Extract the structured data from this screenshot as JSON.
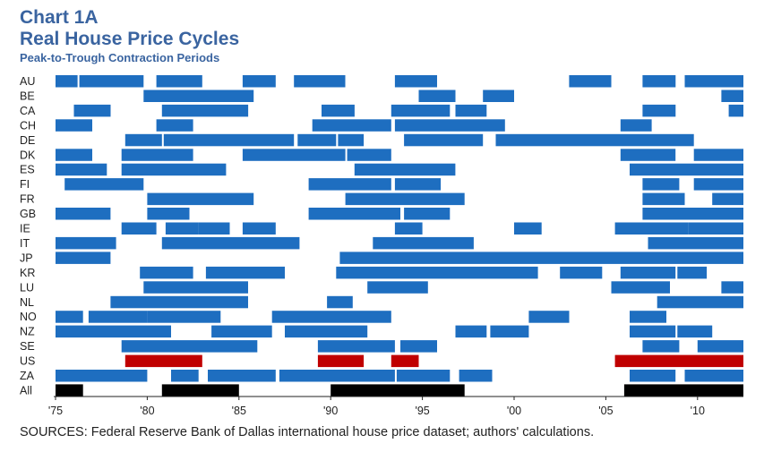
{
  "chart_data": {
    "type": "bar",
    "subtype": "timeline",
    "title": "Chart 1A",
    "subtitle": "Real House Price Cycles",
    "caption": "Peak-to-Trough Contraction Periods",
    "source": "SOURCES: Federal Reserve Bank of Dallas international house price dataset; authors' calculations.",
    "xlabel": "",
    "ylabel": "",
    "xlim": [
      1975.0,
      2012.5
    ],
    "x_ticks": [
      {
        "value": 1975,
        "label": "'75"
      },
      {
        "value": 1980,
        "label": "'80"
      },
      {
        "value": 1985,
        "label": "'85"
      },
      {
        "value": 1990,
        "label": "'90"
      },
      {
        "value": 1995,
        "label": "'95"
      },
      {
        "value": 2000,
        "label": "'00"
      },
      {
        "value": 2005,
        "label": "'05"
      },
      {
        "value": 2010,
        "label": "'10"
      }
    ],
    "grid": false,
    "colors": {
      "contraction": "#1e6ec0",
      "us": "#c00000",
      "all": "#000000"
    },
    "series": [
      {
        "name": "AU",
        "periods": [
          [
            1975.0,
            1976.2
          ],
          [
            1976.3,
            1979.8
          ],
          [
            1980.5,
            1983.0
          ],
          [
            1985.2,
            1987.0
          ],
          [
            1988.0,
            1990.8
          ],
          [
            1993.5,
            1995.8
          ],
          [
            2003.0,
            2005.3
          ],
          [
            2007.0,
            2008.8
          ],
          [
            2009.3,
            2012.5
          ]
        ]
      },
      {
        "name": "BE",
        "periods": [
          [
            1979.8,
            1985.8
          ],
          [
            1994.8,
            1996.8
          ],
          [
            1998.3,
            2000.0
          ],
          [
            2011.3,
            2012.5
          ]
        ]
      },
      {
        "name": "CA",
        "periods": [
          [
            1976.0,
            1978.0
          ],
          [
            1980.8,
            1985.5
          ],
          [
            1989.5,
            1991.3
          ],
          [
            1993.3,
            1996.5
          ],
          [
            1996.8,
            1998.5
          ],
          [
            2007.0,
            2008.8
          ],
          [
            2011.7,
            2012.5
          ]
        ]
      },
      {
        "name": "CH",
        "periods": [
          [
            1975.0,
            1977.0
          ],
          [
            1980.5,
            1982.5
          ],
          [
            1989.0,
            1993.3
          ],
          [
            1993.5,
            1999.5
          ],
          [
            2005.8,
            2007.5
          ]
        ]
      },
      {
        "name": "DE",
        "periods": [
          [
            1978.8,
            1980.8
          ],
          [
            1980.9,
            1988.0
          ],
          [
            1988.2,
            1990.3
          ],
          [
            1990.4,
            1991.8
          ],
          [
            1994.0,
            1998.3
          ],
          [
            1999.0,
            2009.8
          ]
        ]
      },
      {
        "name": "DK",
        "periods": [
          [
            1975.0,
            1977.0
          ],
          [
            1978.6,
            1982.5
          ],
          [
            1985.2,
            1990.8
          ],
          [
            1990.9,
            1993.3
          ],
          [
            2005.8,
            2008.8
          ],
          [
            2009.8,
            2012.5
          ]
        ]
      },
      {
        "name": "ES",
        "periods": [
          [
            1975.0,
            1977.8
          ],
          [
            1978.6,
            1984.3
          ],
          [
            1991.3,
            1996.8
          ],
          [
            2006.3,
            2012.5
          ]
        ]
      },
      {
        "name": "FI",
        "periods": [
          [
            1975.5,
            1979.8
          ],
          [
            1988.8,
            1993.3
          ],
          [
            1993.5,
            1996.0
          ],
          [
            2007.0,
            2009.0
          ],
          [
            2009.8,
            2012.5
          ]
        ]
      },
      {
        "name": "FR",
        "periods": [
          [
            1980.0,
            1985.8
          ],
          [
            1990.8,
            1997.3
          ],
          [
            2007.0,
            2009.3
          ],
          [
            2010.8,
            2012.5
          ]
        ]
      },
      {
        "name": "GB",
        "periods": [
          [
            1975.0,
            1978.0
          ],
          [
            1980.0,
            1982.3
          ],
          [
            1988.8,
            1993.8
          ],
          [
            1994.0,
            1996.5
          ],
          [
            2007.0,
            2009.3
          ],
          [
            2009.3,
            2012.5
          ]
        ]
      },
      {
        "name": "IE",
        "periods": [
          [
            1978.6,
            1980.5
          ],
          [
            1981.0,
            1982.8
          ],
          [
            1982.8,
            1984.5
          ],
          [
            1985.2,
            1987.0
          ],
          [
            1993.5,
            1995.0
          ],
          [
            2000.0,
            2001.5
          ],
          [
            2005.5,
            2009.5
          ],
          [
            2009.5,
            2012.5
          ]
        ]
      },
      {
        "name": "IT",
        "periods": [
          [
            1975.0,
            1978.3
          ],
          [
            1980.8,
            1988.3
          ],
          [
            1992.3,
            1997.8
          ],
          [
            2007.3,
            2012.5
          ]
        ]
      },
      {
        "name": "JP",
        "periods": [
          [
            1975.0,
            1978.0
          ],
          [
            1990.5,
            2012.5
          ]
        ]
      },
      {
        "name": "KR",
        "periods": [
          [
            1979.6,
            1982.5
          ],
          [
            1983.2,
            1987.5
          ],
          [
            1990.3,
            2001.3
          ],
          [
            2002.5,
            2004.8
          ],
          [
            2005.8,
            2008.8
          ],
          [
            2008.9,
            2010.5
          ]
        ]
      },
      {
        "name": "LU",
        "periods": [
          [
            1979.8,
            1985.5
          ],
          [
            1992.0,
            1995.3
          ],
          [
            2005.3,
            2008.5
          ],
          [
            2011.3,
            2012.5
          ]
        ]
      },
      {
        "name": "NL",
        "periods": [
          [
            1978.0,
            1985.5
          ],
          [
            1989.8,
            1991.2
          ],
          [
            2007.8,
            2012.5
          ]
        ]
      },
      {
        "name": "NO",
        "periods": [
          [
            1975.0,
            1976.5
          ],
          [
            1976.8,
            1980.0
          ],
          [
            1980.0,
            1984.0
          ],
          [
            1986.8,
            1993.3
          ],
          [
            2000.8,
            2003.0
          ],
          [
            2006.3,
            2008.3
          ]
        ]
      },
      {
        "name": "NZ",
        "periods": [
          [
            1975.0,
            1981.3
          ],
          [
            1983.5,
            1986.8
          ],
          [
            1987.5,
            1992.0
          ],
          [
            1996.8,
            1998.5
          ],
          [
            1998.7,
            2000.8
          ],
          [
            2006.3,
            2008.8
          ],
          [
            2008.9,
            2010.8
          ]
        ]
      },
      {
        "name": "SE",
        "periods": [
          [
            1978.6,
            1986.0
          ],
          [
            1989.3,
            1993.5
          ],
          [
            1993.8,
            1995.8
          ],
          [
            2007.0,
            2009.0
          ],
          [
            2010.0,
            2012.5
          ]
        ]
      },
      {
        "name": "US",
        "periods": [
          [
            1978.8,
            1983.0
          ],
          [
            1989.3,
            1991.8
          ],
          [
            1993.3,
            1994.8
          ],
          [
            2005.5,
            2012.5
          ]
        ]
      },
      {
        "name": "ZA",
        "periods": [
          [
            1975.0,
            1980.0
          ],
          [
            1981.3,
            1982.8
          ],
          [
            1983.3,
            1987.0
          ],
          [
            1987.2,
            1993.5
          ],
          [
            1993.6,
            1996.5
          ],
          [
            1997.0,
            1998.8
          ],
          [
            2006.3,
            2008.8
          ],
          [
            2009.3,
            2012.5
          ]
        ]
      },
      {
        "name": "All",
        "periods": [
          [
            1975.0,
            1976.5
          ],
          [
            1980.8,
            1985.0
          ],
          [
            1990.0,
            1997.3
          ],
          [
            2006.0,
            2012.5
          ]
        ]
      }
    ]
  }
}
